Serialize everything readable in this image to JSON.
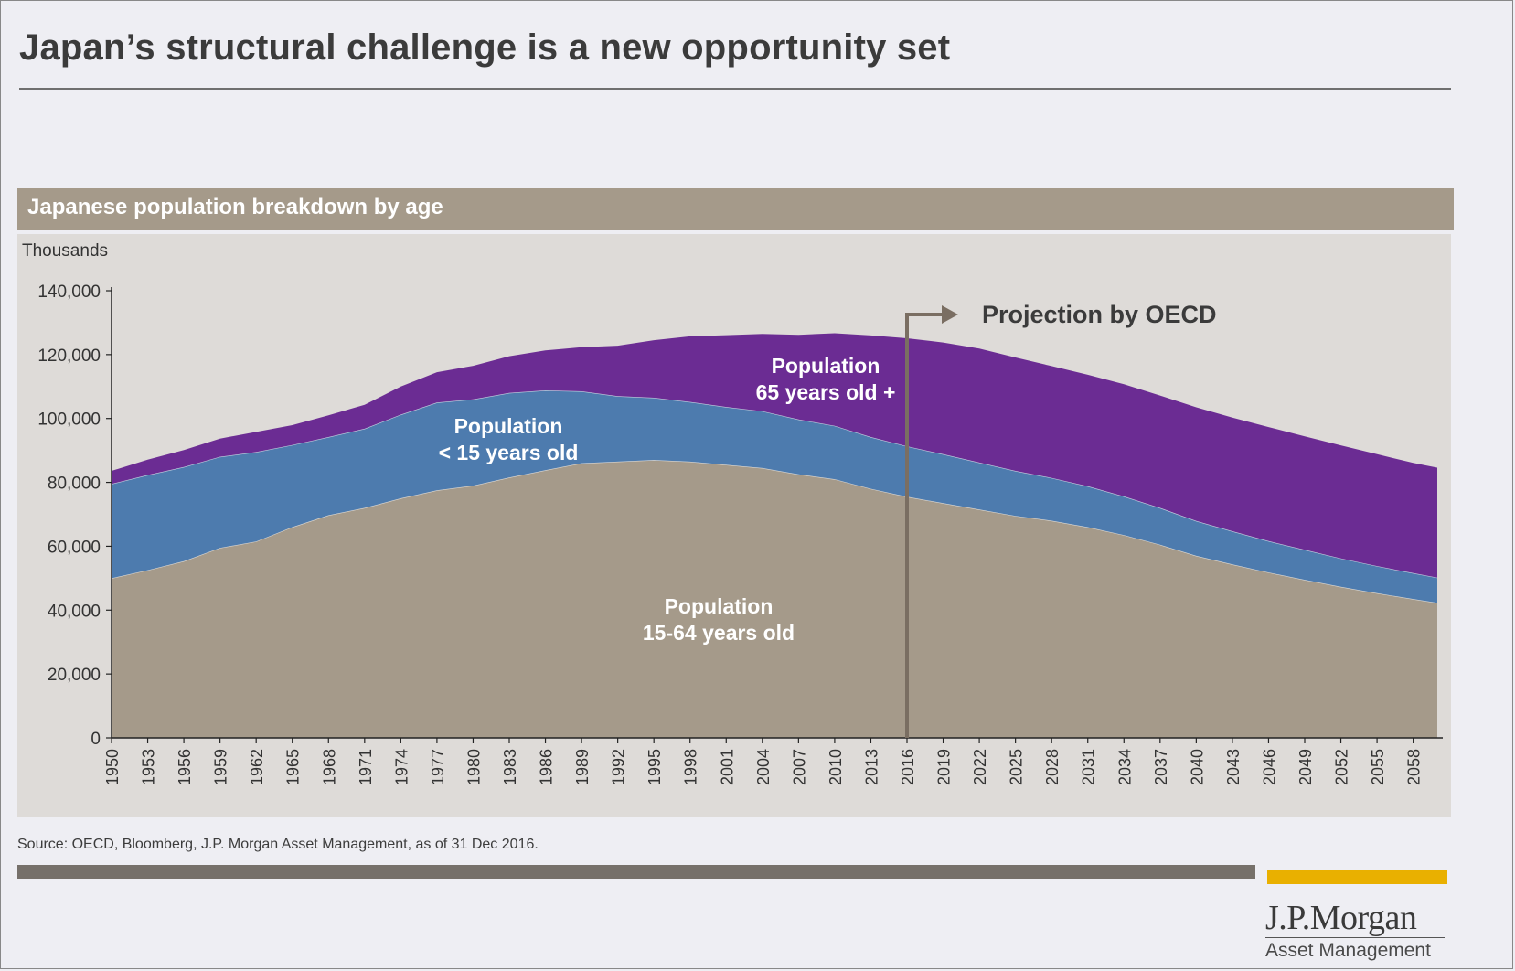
{
  "page": {
    "title": "Japan’s structural challenge is a new opportunity set",
    "source": "Source: OECD, Bloomberg, J.P. Morgan Asset Management, as of 31 Dec 2016.",
    "logo": {
      "name": "J.P.Morgan",
      "sub": "Asset Management"
    }
  },
  "colors": {
    "age_15_64": "#a59a8a",
    "age_under_15": "#4d7bae",
    "age_65_plus": "#6b2c93",
    "header_bar": "#a59a8a",
    "accent_gold": "#e9b000",
    "projection_arrow": "#7a6e62"
  },
  "chart_data": {
    "type": "area",
    "stacked": true,
    "title": "Japanese population breakdown by age",
    "ylabel": "Thousands",
    "ylim": [
      0,
      140000
    ],
    "yticks": [
      0,
      20000,
      40000,
      60000,
      80000,
      100000,
      120000,
      140000
    ],
    "ytick_labels": [
      "0",
      "20,000",
      "40,000",
      "60,000",
      "80,000",
      "100,000",
      "120,000",
      "140,000"
    ],
    "x_labels": [
      "1950",
      "1953",
      "1956",
      "1959",
      "1962",
      "1965",
      "1968",
      "1971",
      "1974",
      "1977",
      "1980",
      "1983",
      "1986",
      "1989",
      "1992",
      "1995",
      "1998",
      "2001",
      "2004",
      "2007",
      "2010",
      "2013",
      "2016",
      "2019",
      "2022",
      "2025",
      "2028",
      "2031",
      "2034",
      "2037",
      "2040",
      "2043",
      "2046",
      "2049",
      "2052",
      "2055",
      "2058"
    ],
    "x_range": [
      1950,
      2060
    ],
    "x": [
      1950,
      1953,
      1956,
      1959,
      1962,
      1965,
      1968,
      1971,
      1974,
      1977,
      1980,
      1983,
      1986,
      1989,
      1992,
      1995,
      1998,
      2001,
      2004,
      2007,
      2010,
      2013,
      2016,
      2019,
      2022,
      2025,
      2028,
      2031,
      2034,
      2037,
      2040,
      2043,
      2046,
      2049,
      2052,
      2055,
      2058,
      2060
    ],
    "series": [
      {
        "name": "Population 15-64 years old",
        "values": [
          50000,
          52500,
          55300,
          59500,
          61500,
          66000,
          69700,
          72000,
          75000,
          77500,
          79000,
          81500,
          83800,
          86000,
          86500,
          87000,
          86500,
          85500,
          84500,
          82500,
          81000,
          78000,
          75500,
          73500,
          71500,
          69500,
          68000,
          66000,
          63500,
          60500,
          57000,
          54300,
          51800,
          49500,
          47300,
          45300,
          43500,
          42300
        ]
      },
      {
        "name": "Population < 15 years old",
        "values": [
          29500,
          29800,
          29500,
          28500,
          28000,
          25700,
          24500,
          24800,
          26200,
          27500,
          27000,
          26500,
          25000,
          22500,
          20500,
          19500,
          18700,
          18100,
          17800,
          17200,
          16700,
          16200,
          15800,
          15300,
          14700,
          14100,
          13400,
          12800,
          12100,
          11500,
          10900,
          10400,
          9800,
          9400,
          8900,
          8500,
          8100,
          7900
        ]
      },
      {
        "name": "Population 65 years old +",
        "values": [
          4100,
          4800,
          5300,
          5700,
          6300,
          6200,
          6800,
          7500,
          8800,
          9500,
          10500,
          11500,
          12500,
          13800,
          15800,
          18000,
          20500,
          22500,
          24200,
          26500,
          29000,
          31800,
          33800,
          35000,
          35700,
          35500,
          35000,
          34900,
          35100,
          35200,
          35600,
          35600,
          35700,
          35500,
          35400,
          35000,
          34500,
          34400
        ]
      }
    ],
    "annotations": [
      {
        "text": "Projection by OECD",
        "x": 2016
      }
    ],
    "grid": false,
    "legend": "none"
  },
  "labels": {
    "age_65_plus": [
      "Population",
      "65 years old +"
    ],
    "age_under_15": [
      "Population",
      "< 15 years old"
    ],
    "age_15_64": [
      "Population",
      "15-64 years old"
    ]
  }
}
